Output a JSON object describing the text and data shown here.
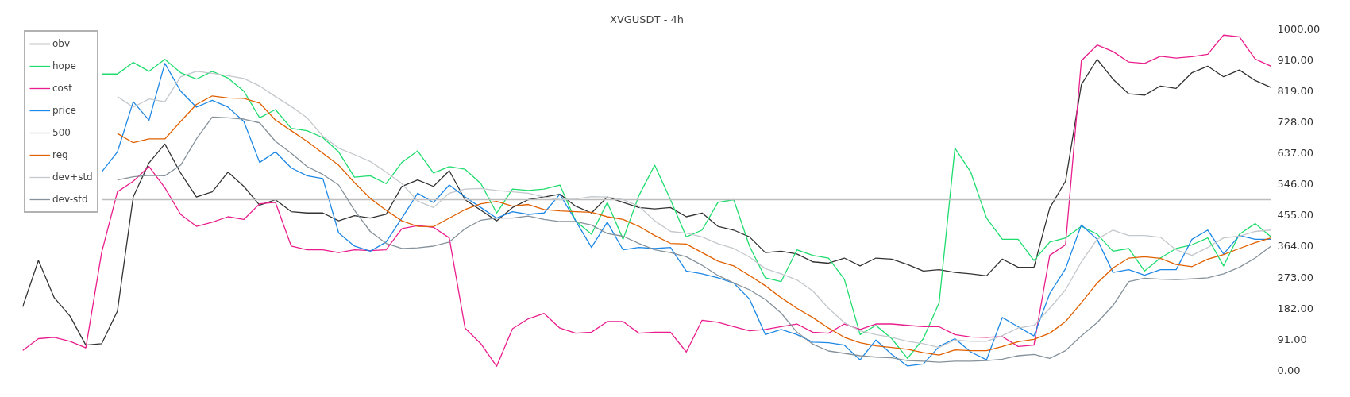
{
  "chart_data": {
    "type": "line",
    "title": "XVGUSDT - 4h",
    "categories": [
      null,
      null,
      null,
      null,
      null,
      null,
      null,
      null,
      null,
      null,
      null,
      null,
      null,
      null,
      null,
      null,
      null,
      null,
      null,
      null,
      null,
      null,
      null,
      null,
      null,
      null,
      null,
      null,
      null,
      null,
      null,
      null,
      null,
      null,
      null,
      null,
      null,
      null,
      null,
      null,
      null,
      null,
      null,
      null,
      null,
      null,
      null,
      null,
      null,
      null,
      null,
      null,
      null,
      null,
      null,
      null,
      null,
      null,
      null,
      null,
      null,
      null,
      null,
      null,
      null,
      null,
      null,
      null,
      null,
      null,
      null,
      null,
      null,
      null,
      null,
      null,
      null,
      null,
      null,
      null
    ],
    "ylim": [
      0,
      1000
    ],
    "yticks": [
      {
        "value": 0,
        "label": "0.00"
      },
      {
        "value": 91,
        "label": "91.00"
      },
      {
        "value": 182,
        "label": "182.00"
      },
      {
        "value": 273,
        "label": "273.00"
      },
      {
        "value": 364,
        "label": "364.00"
      },
      {
        "value": 455,
        "label": "455.00"
      },
      {
        "value": 546,
        "label": "546.00"
      },
      {
        "value": 637,
        "label": "637.00"
      },
      {
        "value": 728,
        "label": "728.00"
      },
      {
        "value": 819,
        "label": "819.00"
      },
      {
        "value": 910,
        "label": "910.00"
      },
      {
        "value": 1000,
        "label": "1000.00"
      }
    ],
    "tick_labels": "y",
    "grid": false,
    "legend": "top left",
    "marker": "none",
    "series": [
      {
        "name": "obv",
        "color": "#333333",
        "values": [
          186,
          322,
          213,
          159,
          74,
          78,
          174,
          508,
          608,
          663,
          578,
          508,
          523,
          581,
          539,
          484,
          500,
          465,
          461,
          461,
          438,
          453,
          446,
          457,
          539,
          558,
          539,
          585,
          500,
          469,
          438,
          477,
          500,
          508,
          516,
          481,
          461,
          508,
          492,
          477,
          473,
          477,
          450,
          461,
          422,
          411,
          391,
          345,
          349,
          341,
          318,
          314,
          329,
          306,
          329,
          326,
          310,
          291,
          295,
          287,
          283,
          277,
          326,
          302,
          302,
          476,
          554,
          837,
          911,
          853,
          810,
          806,
          833,
          826,
          872,
          891,
          860,
          880,
          849,
          829
        ]
      },
      {
        "name": "hope",
        "color": "#1fdc6e",
        "values": [
          null,
          null,
          null,
          null,
          null,
          868,
          868,
          902,
          876,
          911,
          872,
          853,
          876,
          856,
          818,
          740,
          764,
          709,
          702,
          682,
          640,
          566,
          570,
          547,
          609,
          643,
          578,
          597,
          589,
          547,
          461,
          531,
          527,
          531,
          543,
          438,
          399,
          492,
          384,
          512,
          601,
          500,
          391,
          411,
          492,
          500,
          364,
          271,
          260,
          353,
          337,
          329,
          267,
          105,
          132,
          93,
          35,
          93,
          198,
          651,
          581,
          446,
          384,
          384,
          322,
          376,
          388,
          422,
          399,
          349,
          357,
          291,
          329,
          357,
          368,
          388,
          306,
          399,
          430,
          391
        ]
      },
      {
        "name": "cost",
        "color": "#e91e8c",
        "values": [
          58,
          93,
          97,
          85,
          66,
          345,
          523,
          554,
          597,
          535,
          457,
          422,
          434,
          450,
          442,
          488,
          492,
          364,
          353,
          353,
          345,
          353,
          351,
          353,
          415,
          424,
          419,
          388,
          124,
          78,
          12,
          122,
          151,
          167,
          124,
          109,
          112,
          143,
          143,
          109,
          112,
          112,
          54,
          147,
          141,
          128,
          116,
          120,
          128,
          136,
          112,
          109,
          136,
          120,
          136,
          136,
          132,
          128,
          128,
          105,
          98,
          97,
          99,
          70,
          74,
          337,
          368,
          907,
          953,
          934,
          903,
          899,
          920,
          915,
          919,
          926,
          982,
          977,
          912,
          891
        ]
      },
      {
        "name": "price",
        "color": "#1e88e5",
        "values": [
          null,
          null,
          null,
          null,
          null,
          581,
          640,
          787,
          733,
          899,
          818,
          771,
          791,
          771,
          729,
          609,
          640,
          593,
          570,
          562,
          403,
          364,
          349,
          376,
          446,
          519,
          492,
          543,
          508,
          477,
          446,
          465,
          457,
          461,
          516,
          438,
          360,
          434,
          353,
          360,
          357,
          360,
          291,
          283,
          271,
          256,
          209,
          105,
          120,
          105,
          83,
          81,
          74,
          31,
          89,
          47,
          13,
          19,
          70,
          93,
          54,
          31,
          155,
          128,
          101,
          225,
          298,
          426,
          384,
          287,
          295,
          279,
          295,
          295,
          384,
          411,
          341,
          395,
          384,
          384
        ]
      },
      {
        "name": "500",
        "color": "#bdbdbd",
        "values": [
          null,
          null,
          null,
          null,
          null,
          500,
          500,
          500,
          500,
          500,
          500,
          500,
          500,
          500,
          500,
          500,
          500,
          500,
          500,
          500,
          500,
          500,
          500,
          500,
          500,
          500,
          500,
          500,
          500,
          500,
          500,
          500,
          500,
          500,
          500,
          500,
          500,
          500,
          500,
          500,
          500,
          500,
          500,
          500,
          500,
          500,
          500,
          500,
          500,
          500,
          500,
          500,
          500,
          500,
          500,
          500,
          500,
          500,
          500,
          500,
          500,
          500,
          500,
          500,
          500,
          500,
          500,
          500,
          500,
          500,
          500,
          500,
          500,
          500,
          500,
          500,
          500,
          500,
          500,
          500
        ]
      },
      {
        "name": "reg",
        "color": "#e06000",
        "values": [
          null,
          null,
          null,
          null,
          null,
          null,
          694,
          667,
          678,
          678,
          729,
          779,
          804,
          798,
          797,
          783,
          733,
          702,
          671,
          636,
          601,
          550,
          504,
          469,
          438,
          422,
          421,
          446,
          471,
          488,
          495,
          481,
          486,
          471,
          467,
          465,
          463,
          450,
          442,
          422,
          395,
          372,
          370,
          345,
          320,
          306,
          278,
          248,
          213,
          182,
          155,
          124,
          97,
          81,
          72,
          67,
          62,
          52,
          45,
          60,
          58,
          58,
          70,
          84,
          91,
          109,
          143,
          198,
          256,
          300,
          329,
          333,
          328,
          310,
          304,
          326,
          339,
          357,
          374,
          388
        ]
      },
      {
        "name": "dev+std",
        "color": "#c3c8cc",
        "values": [
          null,
          null,
          null,
          null,
          null,
          null,
          802,
          771,
          795,
          787,
          860,
          876,
          870,
          863,
          855,
          833,
          802,
          773,
          740,
          686,
          651,
          632,
          612,
          581,
          547,
          496,
          477,
          519,
          531,
          533,
          527,
          523,
          519,
          508,
          500,
          502,
          509,
          508,
          500,
          481,
          438,
          407,
          402,
          391,
          371,
          357,
          332,
          298,
          283,
          265,
          233,
          182,
          140,
          116,
          105,
          97,
          85,
          78,
          67,
          89,
          85,
          85,
          102,
          124,
          132,
          182,
          236,
          318,
          384,
          411,
          395,
          395,
          390,
          353,
          337,
          360,
          388,
          393,
          407,
          411
        ]
      },
      {
        "name": "dev-std",
        "color": "#86929b",
        "values": [
          null,
          null,
          null,
          null,
          null,
          null,
          558,
          567,
          571,
          570,
          601,
          678,
          742,
          740,
          736,
          725,
          671,
          636,
          597,
          574,
          543,
          469,
          407,
          372,
          357,
          359,
          364,
          376,
          415,
          440,
          446,
          446,
          452,
          442,
          436,
          436,
          426,
          401,
          393,
          372,
          353,
          345,
          333,
          308,
          278,
          256,
          236,
          208,
          168,
          112,
          77,
          57,
          50,
          43,
          39,
          37,
          29,
          27,
          24,
          27,
          27,
          29,
          33,
          43,
          47,
          35,
          58,
          101,
          140,
          190,
          260,
          270,
          267,
          266,
          268,
          271,
          283,
          302,
          329,
          364
        ]
      }
    ]
  }
}
